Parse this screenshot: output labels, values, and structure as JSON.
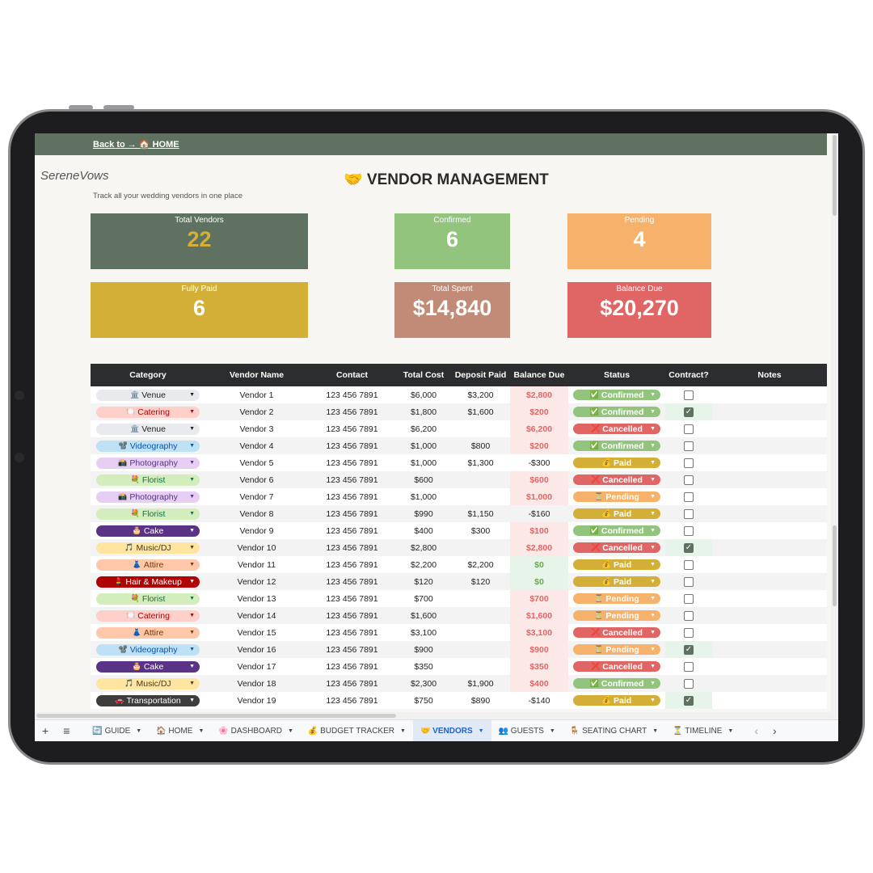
{
  "header": {
    "back_link": "Back to → 🏠 HOME",
    "logo": "SereneVows",
    "title": "🤝 VENDOR MANAGEMENT",
    "subtitle": "Track all your wedding vendors in one place"
  },
  "stats": [
    {
      "label": "Total Vendors",
      "value": "22",
      "bg": "#5f7261",
      "color": "#d4af37"
    },
    {
      "label": "Confirmed",
      "value": "6",
      "bg": "#93c47d",
      "color": "#ffffff"
    },
    {
      "label": "Pending",
      "value": "4",
      "bg": "#f6b26b",
      "color": "#ffffff"
    },
    {
      "label": "Fully Paid",
      "value": "6",
      "bg": "#d4af37",
      "color": "#ffffff"
    },
    {
      "label": "Total Spent",
      "value": "$14,840",
      "bg": "#c28b78",
      "color": "#ffffff"
    },
    {
      "label": "Balance Due",
      "value": "$20,270",
      "bg": "#e06666",
      "color": "#ffffff"
    }
  ],
  "table": {
    "columns": [
      "Category",
      "Vendor Name",
      "Contact",
      "Total Cost",
      "Deposit Paid",
      "Balance Due",
      "Status",
      "Contract?",
      "Notes"
    ],
    "categories": {
      "Venue": {
        "icon": "🏛️",
        "bg": "#e8eaed",
        "fg": "#222222"
      },
      "Catering": {
        "icon": "🍽️",
        "bg": "#ffcfc9",
        "fg": "#b10202"
      },
      "Videography": {
        "icon": "📽️",
        "bg": "#bfe1f6",
        "fg": "#0a53a8"
      },
      "Photography": {
        "icon": "📸",
        "bg": "#e6cff2",
        "fg": "#5a3286"
      },
      "Florist": {
        "icon": "💐",
        "bg": "#d4edbc",
        "fg": "#11734b"
      },
      "Cake": {
        "icon": "🎂",
        "bg": "#5a3286",
        "fg": "#ffffff"
      },
      "Music/DJ": {
        "icon": "🎵",
        "bg": "#ffe5a0",
        "fg": "#473821"
      },
      "Attire": {
        "icon": "👗",
        "bg": "#ffc8aa",
        "fg": "#753800"
      },
      "Hair & Makeup": {
        "icon": "💄",
        "bg": "#b10202",
        "fg": "#ffffff"
      },
      "Transportation": {
        "icon": "🚗",
        "bg": "#3d3d3d",
        "fg": "#ffffff"
      }
    },
    "statuses": {
      "Confirmed": {
        "icon": "✅",
        "bg": "#93c47d"
      },
      "Cancelled": {
        "icon": "❌",
        "bg": "#e06666"
      },
      "Paid": {
        "icon": "💰",
        "bg": "#d4af37"
      },
      "Pending": {
        "icon": "⏳",
        "bg": "#f6b26b"
      }
    },
    "rows": [
      {
        "category": "Venue",
        "vendor": "Vendor 1",
        "contact": "123 456 7891",
        "total": "$6,000",
        "deposit": "$3,200",
        "balance": "$2,800",
        "status": "Confirmed",
        "contract": false
      },
      {
        "category": "Catering",
        "vendor": "Vendor 2",
        "contact": "123 456 7891",
        "total": "$1,800",
        "deposit": "$1,600",
        "balance": "$200",
        "status": "Confirmed",
        "contract": true
      },
      {
        "category": "Venue",
        "vendor": "Vendor 3",
        "contact": "123 456 7891",
        "total": "$6,200",
        "deposit": "",
        "balance": "$6,200",
        "status": "Cancelled",
        "contract": false
      },
      {
        "category": "Videography",
        "vendor": "Vendor 4",
        "contact": "123 456 7891",
        "total": "$1,000",
        "deposit": "$800",
        "balance": "$200",
        "status": "Confirmed",
        "contract": false
      },
      {
        "category": "Photography",
        "vendor": "Vendor 5",
        "contact": "123 456 7891",
        "total": "$1,000",
        "deposit": "$1,300",
        "balance": "-$300",
        "status": "Paid",
        "contract": false
      },
      {
        "category": "Florist",
        "vendor": "Vendor 6",
        "contact": "123 456 7891",
        "total": "$600",
        "deposit": "",
        "balance": "$600",
        "status": "Cancelled",
        "contract": false
      },
      {
        "category": "Photography",
        "vendor": "Vendor 7",
        "contact": "123 456 7891",
        "total": "$1,000",
        "deposit": "",
        "balance": "$1,000",
        "status": "Pending",
        "contract": false
      },
      {
        "category": "Florist",
        "vendor": "Vendor 8",
        "contact": "123 456 7891",
        "total": "$990",
        "deposit": "$1,150",
        "balance": "-$160",
        "status": "Paid",
        "contract": false
      },
      {
        "category": "Cake",
        "vendor": "Vendor 9",
        "contact": "123 456 7891",
        "total": "$400",
        "deposit": "$300",
        "balance": "$100",
        "status": "Confirmed",
        "contract": false
      },
      {
        "category": "Music/DJ",
        "vendor": "Vendor 10",
        "contact": "123 456 7891",
        "total": "$2,800",
        "deposit": "",
        "balance": "$2,800",
        "status": "Cancelled",
        "contract": true
      },
      {
        "category": "Attire",
        "vendor": "Vendor 11",
        "contact": "123 456 7891",
        "total": "$2,200",
        "deposit": "$2,200",
        "balance": "$0",
        "status": "Paid",
        "contract": false
      },
      {
        "category": "Hair & Makeup",
        "vendor": "Vendor 12",
        "contact": "123 456 7891",
        "total": "$120",
        "deposit": "$120",
        "balance": "$0",
        "status": "Paid",
        "contract": false
      },
      {
        "category": "Florist",
        "vendor": "Vendor 13",
        "contact": "123 456 7891",
        "total": "$700",
        "deposit": "",
        "balance": "$700",
        "status": "Pending",
        "contract": false
      },
      {
        "category": "Catering",
        "vendor": "Vendor 14",
        "contact": "123 456 7891",
        "total": "$1,600",
        "deposit": "",
        "balance": "$1,600",
        "status": "Pending",
        "contract": false
      },
      {
        "category": "Attire",
        "vendor": "Vendor 15",
        "contact": "123 456 7891",
        "total": "$3,100",
        "deposit": "",
        "balance": "$3,100",
        "status": "Cancelled",
        "contract": false
      },
      {
        "category": "Videography",
        "vendor": "Vendor 16",
        "contact": "123 456 7891",
        "total": "$900",
        "deposit": "",
        "balance": "$900",
        "status": "Pending",
        "contract": true
      },
      {
        "category": "Cake",
        "vendor": "Vendor 17",
        "contact": "123 456 7891",
        "total": "$350",
        "deposit": "",
        "balance": "$350",
        "status": "Cancelled",
        "contract": false
      },
      {
        "category": "Music/DJ",
        "vendor": "Vendor 18",
        "contact": "123 456 7891",
        "total": "$2,300",
        "deposit": "$1,900",
        "balance": "$400",
        "status": "Confirmed",
        "contract": false
      },
      {
        "category": "Transportation",
        "vendor": "Vendor 19",
        "contact": "123 456 7891",
        "total": "$750",
        "deposit": "$890",
        "balance": "-$140",
        "status": "Paid",
        "contract": true
      }
    ]
  },
  "sheet_tabs": [
    {
      "label": "🔄 GUIDE",
      "active": false
    },
    {
      "label": "🏠 HOME",
      "active": false
    },
    {
      "label": "🌸 DASHBOARD",
      "active": false
    },
    {
      "label": "💰 BUDGET TRACKER",
      "active": false
    },
    {
      "label": "🤝 VENDORS",
      "active": true
    },
    {
      "label": "👥 GUESTS",
      "active": false
    },
    {
      "label": "🪑 SEATING CHART",
      "active": false
    },
    {
      "label": "⏳ TIMELINE",
      "active": false
    }
  ],
  "toolbar": {
    "add": "+",
    "menu": "≡",
    "prev": "‹",
    "next": "›"
  }
}
